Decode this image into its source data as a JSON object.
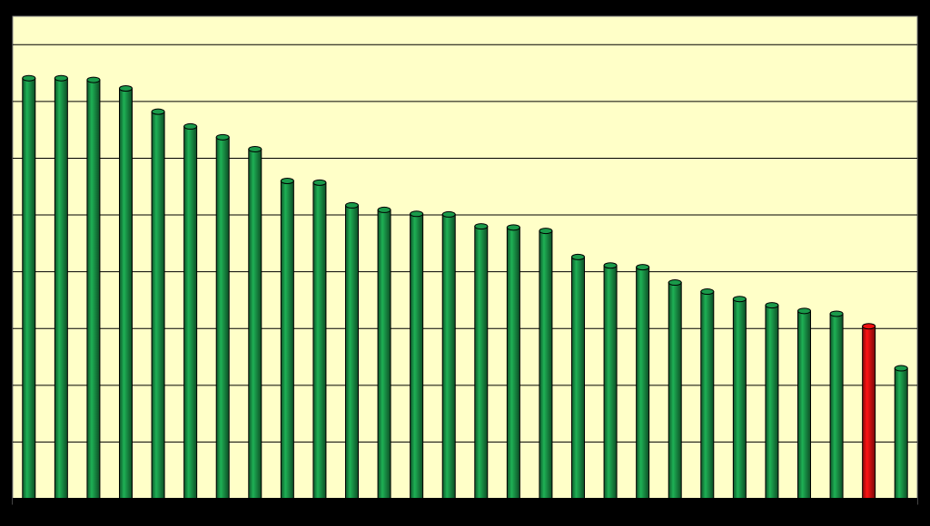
{
  "chart_data": {
    "type": "bar",
    "categories": [
      null,
      null,
      null,
      null,
      null,
      null,
      null,
      null,
      null,
      null,
      null,
      null,
      null,
      null,
      null,
      null,
      null,
      null,
      null,
      null,
      null,
      null,
      null,
      null,
      null,
      null,
      null,
      null
    ],
    "values": [
      7.41,
      7.41,
      7.38,
      7.23,
      6.82,
      6.56,
      6.37,
      6.16,
      5.6,
      5.57,
      5.17,
      5.09,
      5.02,
      5.01,
      4.8,
      4.78,
      4.72,
      4.26,
      4.11,
      4.08,
      3.81,
      3.65,
      3.52,
      3.41,
      3.31,
      3.26,
      3.04,
      2.3
    ],
    "colors": [
      "#1a9a4a",
      "#1a9a4a",
      "#1a9a4a",
      "#1a9a4a",
      "#1a9a4a",
      "#1a9a4a",
      "#1a9a4a",
      "#1a9a4a",
      "#1a9a4a",
      "#1a9a4a",
      "#1a9a4a",
      "#1a9a4a",
      "#1a9a4a",
      "#1a9a4a",
      "#1a9a4a",
      "#1a9a4a",
      "#1a9a4a",
      "#1a9a4a",
      "#1a9a4a",
      "#1a9a4a",
      "#1a9a4a",
      "#1a9a4a",
      "#1a9a4a",
      "#1a9a4a",
      "#1a9a4a",
      "#1a9a4a",
      "#ee1111",
      "#1a9a4a"
    ],
    "ylim": [
      0,
      8.5
    ],
    "yticks": [
      1,
      2,
      3,
      4,
      5,
      6,
      7,
      8
    ],
    "grid": true
  }
}
